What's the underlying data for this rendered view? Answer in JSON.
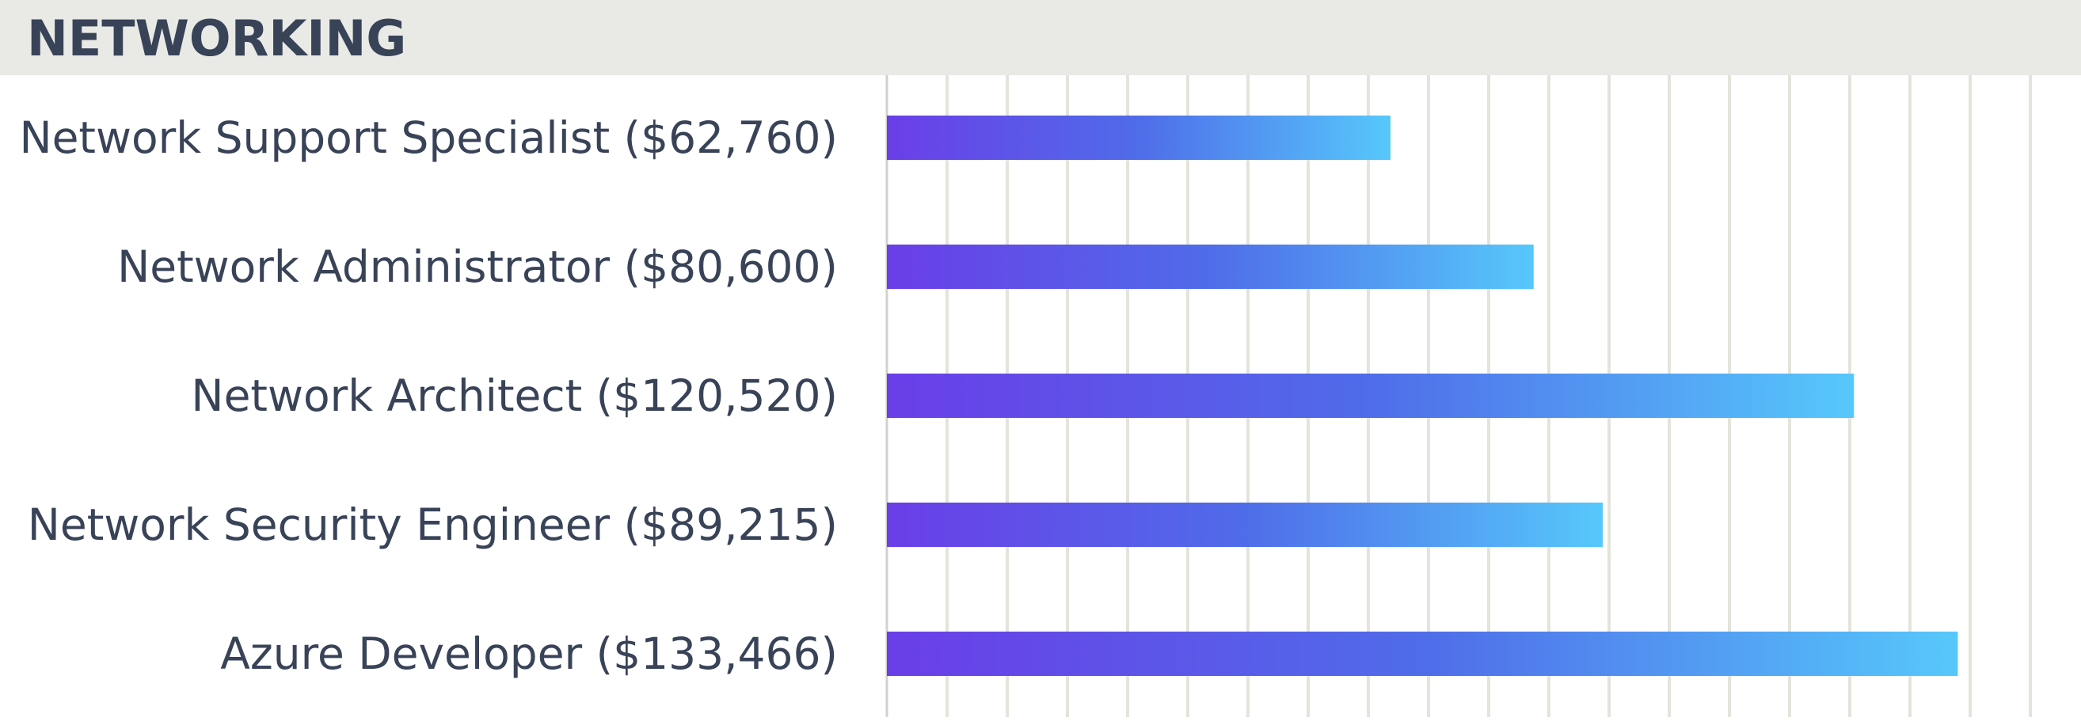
{
  "section_title": "NETWORKING",
  "colors": {
    "header_bg": "#e9eae6",
    "text": "#394358",
    "gridline": "#e4e4dc",
    "bar_start": "#6a3ee8",
    "bar_mid": "#4f6ce9",
    "bar_end": "#56c8fb"
  },
  "chart_data": {
    "type": "bar",
    "orientation": "horizontal",
    "categories": [
      "Network Support Specialist ($62,760)",
      "Network Administrator ($80,600)",
      "Network Architect ($120,520)",
      "Network Security Engineer ($89,215)",
      "Azure Developer ($133,466)"
    ],
    "values": [
      62760,
      80600,
      120520,
      89215,
      133466
    ],
    "xlim": [
      0,
      150000
    ],
    "grid": true,
    "title": "",
    "xlabel": "",
    "ylabel": ""
  }
}
